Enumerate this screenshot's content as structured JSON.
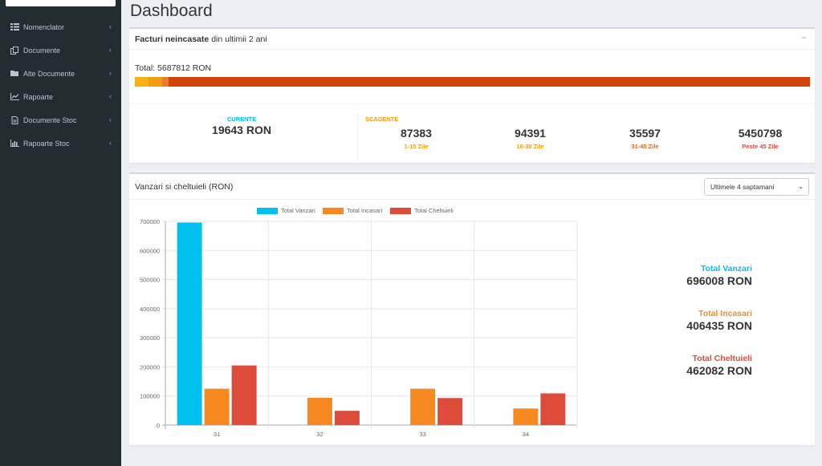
{
  "page": {
    "title": "Dashboard"
  },
  "sidebar": {
    "items": [
      {
        "label": "Nomenclator",
        "icon": "list-icon"
      },
      {
        "label": "Documente",
        "icon": "documents-icon"
      },
      {
        "label": "Alte Documente",
        "icon": "folder-icon"
      },
      {
        "label": "Rapoarte",
        "icon": "line-chart-icon"
      },
      {
        "label": "Documente Stoc",
        "icon": "file-icon"
      },
      {
        "label": "Rapoarte Stoc",
        "icon": "bar-chart-icon"
      }
    ],
    "chevron": "‹"
  },
  "invoices": {
    "title_bold": "Facturi neincasate",
    "title_rest": "din ultimii 2 ani",
    "collapse": "−",
    "total_label": "Total: 5687812 RON",
    "progress": [
      {
        "fraction": 0.0203,
        "color": "#f9b214"
      },
      {
        "fraction": 0.0196,
        "color": "#f39c12"
      },
      {
        "fraction": 0.0095,
        "color": "#e67e22"
      },
      {
        "fraction": 0.9506,
        "color": "#d04405"
      }
    ],
    "current": {
      "label": "CURENTE",
      "value": "19643 RON",
      "color": "#00c0ef"
    },
    "due": {
      "label": "SCADENTE",
      "color": "#f39c12",
      "items": [
        {
          "value": "87383",
          "sub": "1-15 Zile",
          "color": "#f39c12"
        },
        {
          "value": "94391",
          "sub": "16-30 Zile",
          "color": "#f39c12"
        },
        {
          "value": "35597",
          "sub": "31-45 Zile",
          "color": "#e8641a"
        },
        {
          "value": "5450798",
          "sub": "Peste 45 Zile",
          "color": "#dd4b39"
        }
      ]
    }
  },
  "sales": {
    "title": "Vanzari si cheltuieli (RON)",
    "period_select": "Ultimele 4 saptamani",
    "totals": [
      {
        "label": "Total Vanzari",
        "value": "696008 RON",
        "color": "#00c0ef"
      },
      {
        "label": "Total Incasari",
        "value": "406435 RON",
        "color": "#f6891f"
      },
      {
        "label": "Total Cheltuieli",
        "value": "462082 RON",
        "color": "#dd4b39"
      }
    ]
  },
  "chart_data": {
    "type": "bar",
    "categories": [
      "31",
      "32",
      "33",
      "34"
    ],
    "series": [
      {
        "name": "Total Vanzari",
        "color": "#00c0ef",
        "values": [
          696008,
          0,
          0,
          0
        ]
      },
      {
        "name": "Total Incasari",
        "color": "#f6891f",
        "values": [
          125000,
          94000,
          125000,
          57000
        ]
      },
      {
        "name": "Total Cheltuieli",
        "color": "#dd4b39",
        "values": [
          205000,
          49000,
          93000,
          109000
        ]
      }
    ],
    "ylim": [
      0,
      700000
    ],
    "yticks": [
      "0",
      "100000",
      "200000",
      "300000",
      "400000",
      "500000",
      "600000",
      "700000"
    ],
    "legend": "top",
    "grid": true
  }
}
